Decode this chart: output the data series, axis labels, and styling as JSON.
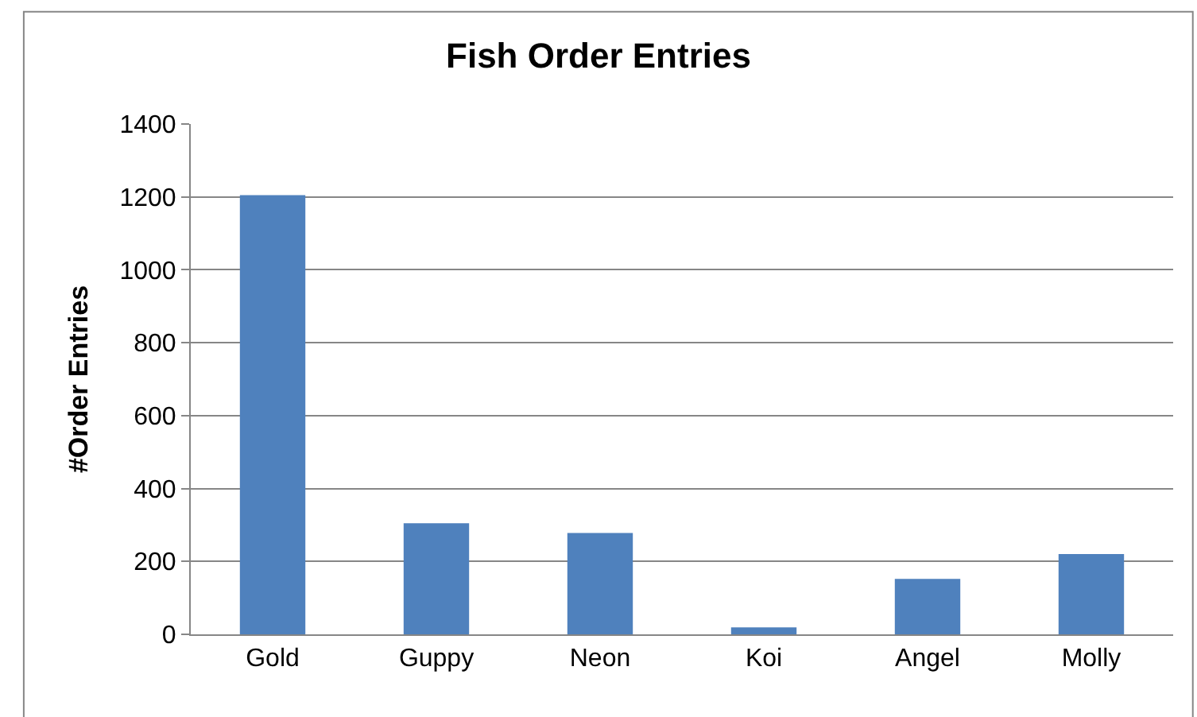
{
  "chart_data": {
    "type": "bar",
    "title": "Fish Order Entries",
    "ylabel": "#Order Entries",
    "categories": [
      "Gold",
      "Guppy",
      "Neon",
      "Koi",
      "Angel",
      "Molly"
    ],
    "values": [
      1205,
      305,
      278,
      19,
      152,
      220
    ],
    "color": "#4f81bd",
    "ylim": [
      0,
      1400
    ],
    "yticks": [
      0,
      200,
      400,
      600,
      800,
      1000,
      1200,
      1400
    ],
    "grid": "y",
    "legend": false
  }
}
